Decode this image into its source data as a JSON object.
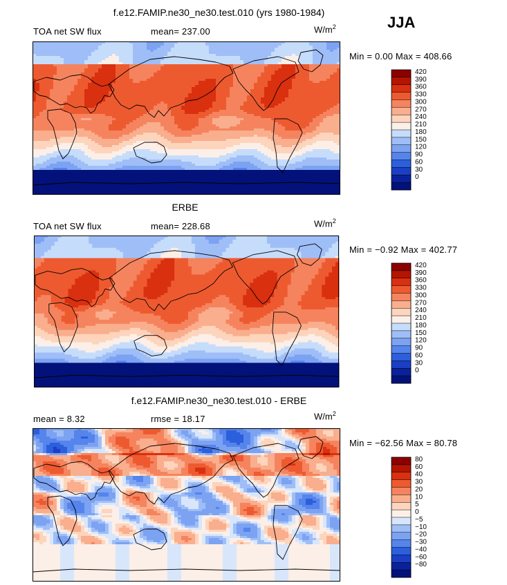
{
  "season": "JJA",
  "panels": [
    {
      "title": "f.e12.FAMIP.ne30_ne30.test.010 (yrs 1980-1984)",
      "left_label": "TOA net SW flux",
      "stat_label": "mean=",
      "stat_value": "237.00",
      "units_base": "W/m",
      "units_exp": "2",
      "minmax_text": "Min =   0.00 Max = 408.66",
      "kind": "abs"
    },
    {
      "title": "ERBE",
      "left_label": "TOA net SW flux",
      "stat_label": "mean=",
      "stat_value": "228.68",
      "units_base": "W/m",
      "units_exp": "2",
      "minmax_text": "Min =  −0.92 Max = 402.77",
      "kind": "abs2"
    },
    {
      "title": "f.e12.FAMIP.ne30_ne30.test.010 - ERBE",
      "left_label": "mean =    8.32",
      "stat_label": "rmse =",
      "stat_value": "18.17",
      "units_base": "W/m",
      "units_exp": "2",
      "minmax_text": "Min = −62.56 Max =  80.78",
      "kind": "diff"
    }
  ],
  "chart_data": [
    {
      "type": "heatmap",
      "title": "f.e12.FAMIP.ne30_ne30.test.010 (yrs 1980-1984)",
      "variable": "TOA net SW flux",
      "units": "W/m^2",
      "mean": 237.0,
      "min": 0.0,
      "max": 408.66,
      "colorbar_levels": [
        "420",
        "390",
        "360",
        "330",
        "300",
        "270",
        "240",
        "210",
        "180",
        "150",
        "120",
        "90",
        "60",
        "30",
        "0"
      ],
      "colorbar_colors": [
        "#8b0000",
        "#b31500",
        "#d93010",
        "#ee5a30",
        "#f5845e",
        "#f9ae8e",
        "#fdd4bc",
        "#fbefe8",
        "#c6dcfb",
        "#9fbef7",
        "#7ca2f2",
        "#5584ec",
        "#2c5fdc",
        "#1a3fc4",
        "#0a2199",
        "#03127a"
      ]
    },
    {
      "type": "heatmap",
      "title": "ERBE",
      "variable": "TOA net SW flux",
      "units": "W/m^2",
      "mean": 228.68,
      "min": -0.92,
      "max": 402.77,
      "colorbar_levels": [
        "420",
        "390",
        "360",
        "330",
        "300",
        "270",
        "240",
        "210",
        "180",
        "150",
        "120",
        "90",
        "60",
        "30",
        "0"
      ],
      "colorbar_colors": [
        "#8b0000",
        "#b31500",
        "#d93010",
        "#ee5a30",
        "#f5845e",
        "#f9ae8e",
        "#fdd4bc",
        "#fbefe8",
        "#c6dcfb",
        "#9fbef7",
        "#7ca2f2",
        "#5584ec",
        "#2c5fdc",
        "#1a3fc4",
        "#0a2199",
        "#03127a"
      ]
    },
    {
      "type": "heatmap",
      "title": "f.e12.FAMIP.ne30_ne30.test.010 - ERBE",
      "units": "W/m^2",
      "mean": 8.32,
      "rmse": 18.17,
      "min": -62.56,
      "max": 80.78,
      "colorbar_levels": [
        "80",
        "60",
        "40",
        "30",
        "20",
        "10",
        "5",
        "0",
        "−5",
        "−10",
        "−20",
        "−30",
        "−40",
        "−60",
        "−80"
      ],
      "colorbar_colors": [
        "#8b0000",
        "#b31500",
        "#d93010",
        "#ee5a30",
        "#f5845e",
        "#f9ae8e",
        "#fdd4bc",
        "#fbefe8",
        "#d8e6fc",
        "#9fbef7",
        "#7ca2f2",
        "#5584ec",
        "#2c5fdc",
        "#1a3fc4",
        "#0a2199",
        "#03127a"
      ]
    }
  ]
}
